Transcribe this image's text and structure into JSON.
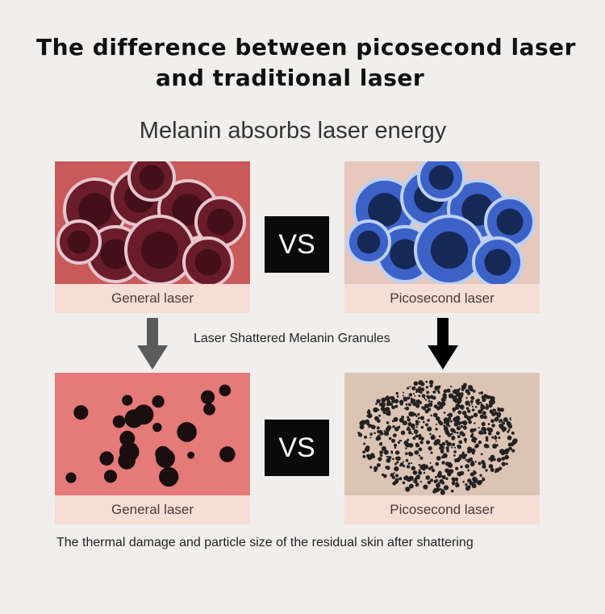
{
  "title": {
    "line1": "The difference between picosecond laser",
    "line2": "and traditional laser"
  },
  "subtitle": "Melanin absorbs laser energy",
  "row1": {
    "left_label": "General laser",
    "right_label": "Picosecond laser",
    "vs": "VS"
  },
  "middle_text": "Laser Shattered Melanin Granules",
  "row2": {
    "left_label": "General laser",
    "right_label": "Picosecond laser",
    "vs": "VS"
  },
  "footer": "The thermal damage and particle size of the residual skin after shattering",
  "colors": {
    "label_band": "#f6ddd6",
    "gray_arrow": "#5b5b5b",
    "black_arrow": "#000000"
  }
}
